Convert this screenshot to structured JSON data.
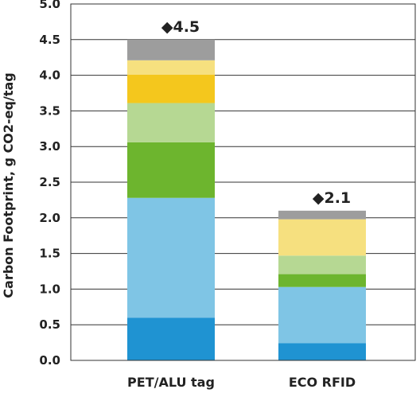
{
  "chart_data": {
    "type": "bar",
    "stacked": true,
    "ylabel": "Carbon Footprint, g CO2-eq/tag",
    "xlabel": "",
    "ylim": [
      0,
      5.0
    ],
    "yticks": [
      "0.0",
      "0.5",
      "1.0",
      "1.5",
      "2.0",
      "2.5",
      "3.0",
      "3.5",
      "4.0",
      "4.5",
      "5.0"
    ],
    "grid": true,
    "legend": "none",
    "categories": [
      "PET/ALU tag",
      "ECO RFID"
    ],
    "series": [
      {
        "color": "#1f93d2",
        "values": [
          0.6,
          0.24
        ]
      },
      {
        "color": "#7fc5e5",
        "values": [
          1.68,
          0.79
        ]
      },
      {
        "color": "#6db52e",
        "values": [
          0.78,
          0.18
        ]
      },
      {
        "color": "#b6d893",
        "values": [
          0.55,
          0.26
        ]
      },
      {
        "color": "#f4c71d",
        "values": [
          0.4,
          0.0
        ]
      },
      {
        "color": "#f6e07f",
        "values": [
          0.2,
          0.51
        ]
      },
      {
        "color": "#9d9d9d",
        "values": [
          0.29,
          0.12
        ]
      }
    ],
    "totals": [
      "◆4.5",
      "◆2.1"
    ]
  }
}
